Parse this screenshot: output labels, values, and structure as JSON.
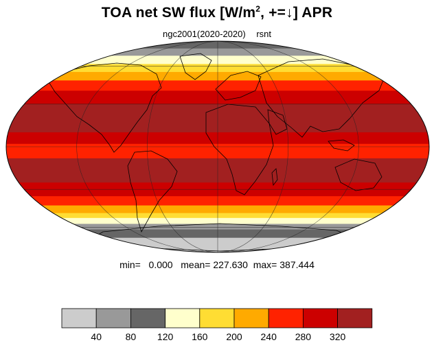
{
  "title": {
    "main": "TOA net SW flux [W/m",
    "sup": "2",
    "tail": ", +=↓]  APR"
  },
  "subtitle": {
    "case": "ngc2001(2020-2020)",
    "variable": "rsnt"
  },
  "stats": {
    "min_label": "min=",
    "min_value": "0.000",
    "mean_label": "mean=",
    "mean_value": "227.630",
    "max_label": "max=",
    "max_value": "387.444"
  },
  "colorbar": {
    "levels": [
      40,
      80,
      120,
      160,
      200,
      240,
      280,
      320
    ],
    "colors": [
      "#cccccc",
      "#999999",
      "#666666",
      "#ffffcc",
      "#ffdd33",
      "#ffaa00",
      "#ff2200",
      "#cc0000",
      "#a22020"
    ]
  },
  "map": {
    "projection": "mollweide",
    "zonal_bands": [
      {
        "lat_max": 90,
        "lat_min": 78,
        "color": "#666666"
      },
      {
        "lat_max": 78,
        "lat_min": 70,
        "color": "#999999"
      },
      {
        "lat_max": 70,
        "lat_min": 62,
        "color": "#ffffcc"
      },
      {
        "lat_max": 62,
        "lat_min": 55,
        "color": "#ffdd33"
      },
      {
        "lat_max": 55,
        "lat_min": 48,
        "color": "#ffaa00"
      },
      {
        "lat_max": 48,
        "lat_min": 40,
        "color": "#ff2200"
      },
      {
        "lat_max": 40,
        "lat_min": 30,
        "color": "#cc0000"
      },
      {
        "lat_max": 30,
        "lat_min": 10,
        "color": "#a22020"
      },
      {
        "lat_max": 10,
        "lat_min": 2,
        "color": "#cc0000"
      },
      {
        "lat_max": 2,
        "lat_min": -8,
        "color": "#ff2200"
      },
      {
        "lat_max": -8,
        "lat_min": -25,
        "color": "#a22020"
      },
      {
        "lat_max": -25,
        "lat_min": -35,
        "color": "#cc0000"
      },
      {
        "lat_max": -35,
        "lat_min": -42,
        "color": "#ff2200"
      },
      {
        "lat_max": -42,
        "lat_min": -48,
        "color": "#ffaa00"
      },
      {
        "lat_max": -48,
        "lat_min": -52,
        "color": "#ffdd33"
      },
      {
        "lat_max": -52,
        "lat_min": -57,
        "color": "#ffffcc"
      },
      {
        "lat_max": -57,
        "lat_min": -62,
        "color": "#999999"
      },
      {
        "lat_max": -62,
        "lat_min": -70,
        "color": "#666666"
      },
      {
        "lat_max": -70,
        "lat_min": -90,
        "color": "#cccccc"
      }
    ],
    "gridline_longitudes": [
      -120,
      -60,
      0,
      60,
      120
    ],
    "gridline_latitudes": [
      -60,
      -30,
      0,
      30,
      60
    ]
  }
}
